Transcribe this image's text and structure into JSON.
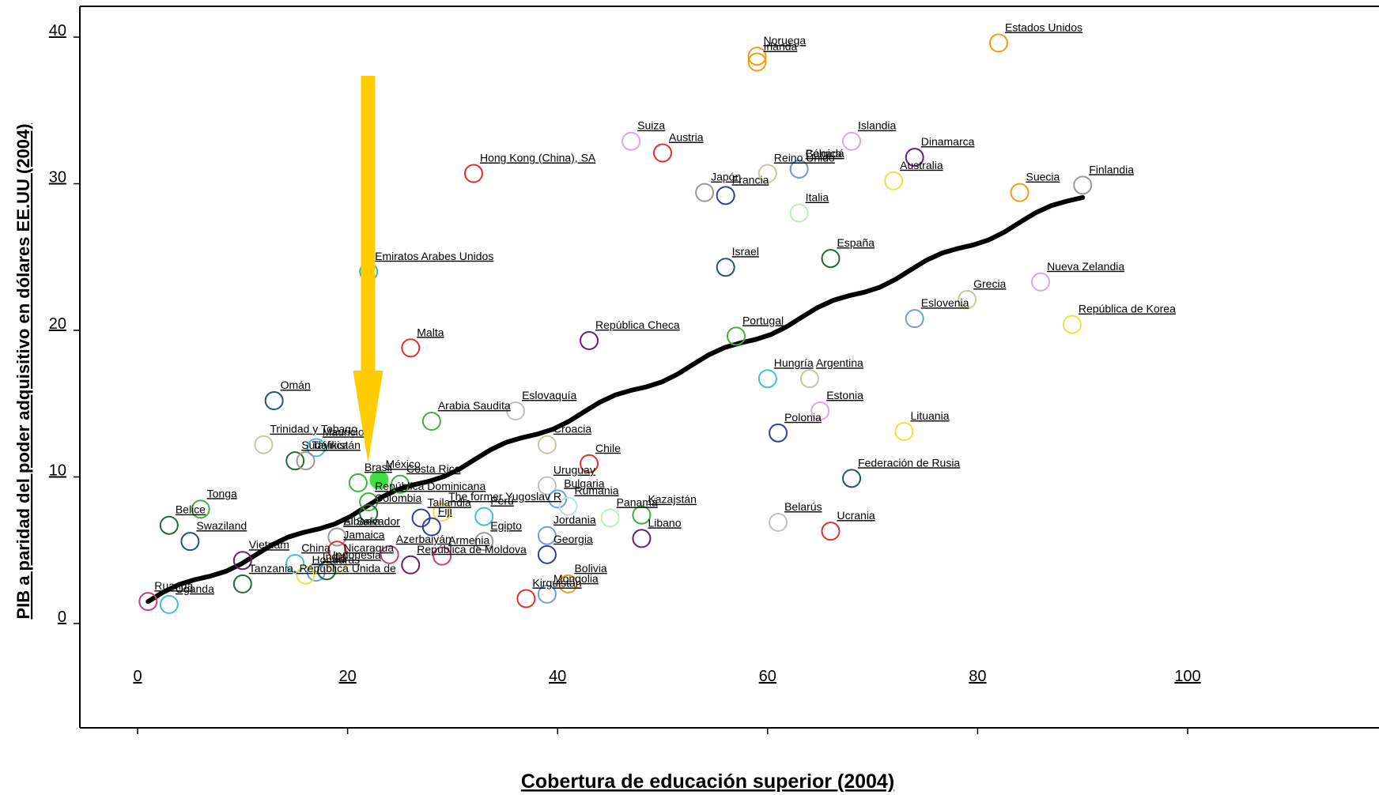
{
  "chart_data": {
    "type": "scatter",
    "xlabel": "Cobertura de educación superior (2004)",
    "ylabel": "PIB a paridad del poder adquisitivo en dólares EE.UU (2004)",
    "xlim": [
      -14,
      106
    ],
    "ylim": [
      -2,
      42
    ],
    "xticks": [
      "0",
      "20",
      "40",
      "60",
      "80",
      "100"
    ],
    "yticks": [
      "0",
      "10",
      "20",
      "30",
      "40"
    ],
    "grid": false,
    "highlight": "México",
    "arrow_color": "#FFCC00",
    "trendline": [
      [
        1,
        1.5
      ],
      [
        90,
        29.2
      ]
    ],
    "points": [
      {
        "name": "Estados Unidos",
        "x": 82,
        "y": 39.6,
        "color": "#F39C12"
      },
      {
        "name": "Noruega",
        "x": 59,
        "y": 38.7,
        "color": "#F39C12"
      },
      {
        "name": "Irlanda",
        "x": 59,
        "y": 38.3,
        "color": "#F39C12"
      },
      {
        "name": "Suiza",
        "x": 47,
        "y": 32.9,
        "color": "#D8A8E8"
      },
      {
        "name": "Austria",
        "x": 50,
        "y": 32.1,
        "color": "#E03030"
      },
      {
        "name": "Islandia",
        "x": 68,
        "y": 32.9,
        "color": "#D8A8E8"
      },
      {
        "name": "Dinamarca",
        "x": 74,
        "y": 31.8,
        "color": "#6B1E6B"
      },
      {
        "name": "Hong Kong (China), SA",
        "x": 32,
        "y": 30.7,
        "color": "#E03030"
      },
      {
        "name": "Reino Unido",
        "x": 60,
        "y": 30.7,
        "color": "#C8C89A"
      },
      {
        "name": "Canadá",
        "x": 63,
        "y": 31.0,
        "color": "#6FA0D0"
      },
      {
        "name": "Bélgica",
        "x": 63,
        "y": 31.0,
        "color": "#6FA0D0"
      },
      {
        "name": "Australia",
        "x": 72,
        "y": 30.2,
        "color": "#F0E040"
      },
      {
        "name": "Finlandia",
        "x": 90,
        "y": 29.9,
        "color": "#999999"
      },
      {
        "name": "Suecia",
        "x": 84,
        "y": 29.4,
        "color": "#F39C12"
      },
      {
        "name": "Japón",
        "x": 54,
        "y": 29.4,
        "color": "#999999"
      },
      {
        "name": "Francia",
        "x": 56,
        "y": 29.2,
        "color": "#2E3FA0"
      },
      {
        "name": "Italia",
        "x": 63,
        "y": 28.0,
        "color": "#B8F0B8"
      },
      {
        "name": "Emiratos Arabes Unidos",
        "x": 22,
        "y": 24.0,
        "color": "#40B0B0"
      },
      {
        "name": "Israel",
        "x": 56,
        "y": 24.3,
        "color": "#1E5A6B"
      },
      {
        "name": "España",
        "x": 66,
        "y": 24.9,
        "color": "#1E6B3A"
      },
      {
        "name": "Nueva Zelandia",
        "x": 86,
        "y": 23.3,
        "color": "#D8A8E8"
      },
      {
        "name": "Grecia",
        "x": 79,
        "y": 22.1,
        "color": "#C8C89A"
      },
      {
        "name": "Eslovenia",
        "x": 74,
        "y": 20.8,
        "color": "#6FA0D0"
      },
      {
        "name": "República de Korea",
        "x": 89,
        "y": 20.4,
        "color": "#F0E040"
      },
      {
        "name": "Portugal",
        "x": 57,
        "y": 19.6,
        "color": "#40B040"
      },
      {
        "name": "República Checa",
        "x": 43,
        "y": 19.3,
        "color": "#6B1E6B"
      },
      {
        "name": "Malta",
        "x": 26,
        "y": 18.8,
        "color": "#E03030"
      },
      {
        "name": "Hungría",
        "x": 60,
        "y": 16.7,
        "color": "#40C0D0"
      },
      {
        "name": "Argentina",
        "x": 64,
        "y": 16.7,
        "color": "#C8C89A"
      },
      {
        "name": "Omán",
        "x": 13,
        "y": 15.2,
        "color": "#1E5A6B"
      },
      {
        "name": "Estonia",
        "x": 65,
        "y": 14.5,
        "color": "#D8A8E8"
      },
      {
        "name": "Eslovaquía",
        "x": 36,
        "y": 14.5,
        "color": "#C0C0C0"
      },
      {
        "name": "Arabia Saudita",
        "x": 28,
        "y": 13.8,
        "color": "#40B040"
      },
      {
        "name": "Polonia",
        "x": 61,
        "y": 13.0,
        "color": "#2E3FA0"
      },
      {
        "name": "Lituania",
        "x": 73,
        "y": 13.1,
        "color": "#F0E040"
      },
      {
        "name": "Trinidad y Tobago",
        "x": 12,
        "y": 12.2,
        "color": "#C8C89A"
      },
      {
        "name": "Croacia",
        "x": 39,
        "y": 12.2,
        "color": "#C8C89A"
      },
      {
        "name": "Mauricio",
        "x": 17,
        "y": 12.0,
        "color": "#40C0D0"
      },
      {
        "name": "Sudáfrica",
        "x": 15,
        "y": 11.1,
        "color": "#1E6B3A"
      },
      {
        "name": "Chile",
        "x": 43,
        "y": 10.9,
        "color": "#E03030"
      },
      {
        "name": "Tayikistán",
        "x": 16,
        "y": 11.1,
        "color": "#999999"
      },
      {
        "name": "Federación de Rusia",
        "x": 68,
        "y": 9.9,
        "color": "#1E5A6B"
      },
      {
        "name": "México",
        "x": 23,
        "y": 9.8,
        "color": "#40E040",
        "filled": true
      },
      {
        "name": "Brasil",
        "x": 21,
        "y": 9.6,
        "color": "#40B040"
      },
      {
        "name": "Costa Rica",
        "x": 25,
        "y": 9.5,
        "color": "#40B040"
      },
      {
        "name": "Uruguay",
        "x": 39,
        "y": 9.4,
        "color": "#C0C0C0"
      },
      {
        "name": "Bulgaria",
        "x": 40,
        "y": 8.5,
        "color": "#6FA0D0"
      },
      {
        "name": "Rumania",
        "x": 41,
        "y": 8.0,
        "color": "#B8E0E0"
      },
      {
        "name": "República Dominicana",
        "x": 22,
        "y": 8.3,
        "color": "#40B040"
      },
      {
        "name": "Tonga",
        "x": 6,
        "y": 7.8,
        "color": "#40B040"
      },
      {
        "name": "Belice",
        "x": 3,
        "y": 6.7,
        "color": "#1E6B3A"
      },
      {
        "name": "Colombia",
        "x": 22,
        "y": 7.5,
        "color": "#1E6B3A"
      },
      {
        "name": "The former Yugoslav R",
        "x": 29,
        "y": 7.6,
        "color": "#F0E040"
      },
      {
        "name": "Panamá",
        "x": 45,
        "y": 7.2,
        "color": "#B8F0B8"
      },
      {
        "name": "Kazajstán",
        "x": 48,
        "y": 7.4,
        "color": "#40B040"
      },
      {
        "name": "Perú",
        "x": 33,
        "y": 7.3,
        "color": "#40C0D0"
      },
      {
        "name": "Tailandia",
        "x": 27,
        "y": 7.2,
        "color": "#2E3FA0"
      },
      {
        "name": "Fiji",
        "x": 28,
        "y": 6.6,
        "color": "#2E3FA0"
      },
      {
        "name": "Swaziland",
        "x": 5,
        "y": 5.6,
        "color": "#1E5A6B"
      },
      {
        "name": "Albania",
        "x": 19,
        "y": 5.9,
        "color": "#C0C0C0"
      },
      {
        "name": "El Salvador",
        "x": 19,
        "y": 5.9,
        "color": "#999999"
      },
      {
        "name": "Libano",
        "x": 48,
        "y": 5.8,
        "color": "#6B1E6B"
      },
      {
        "name": "Jordania",
        "x": 39,
        "y": 6.0,
        "color": "#6FA0D0"
      },
      {
        "name": "Egipto",
        "x": 33,
        "y": 5.6,
        "color": "#999999"
      },
      {
        "name": "Belarús",
        "x": 61,
        "y": 6.9,
        "color": "#C0C0C0"
      },
      {
        "name": "Ucrania",
        "x": 66,
        "y": 6.3,
        "color": "#E03030"
      },
      {
        "name": "Jamaica",
        "x": 19,
        "y": 5.0,
        "color": "#E03030"
      },
      {
        "name": "Azerbaiyán",
        "x": 24,
        "y": 4.7,
        "color": "#C04080"
      },
      {
        "name": "China",
        "x": 15,
        "y": 4.1,
        "color": "#40C0D0"
      },
      {
        "name": "Armenia",
        "x": 29,
        "y": 4.6,
        "color": "#C04080"
      },
      {
        "name": "Vietnam",
        "x": 10,
        "y": 4.3,
        "color": "#6B1E6B"
      },
      {
        "name": "Nicaragua",
        "x": 19,
        "y": 4.1,
        "color": "#F0E040"
      },
      {
        "name": "India",
        "x": 17,
        "y": 3.5,
        "color": "#6FA0D0"
      },
      {
        "name": "Indonesia",
        "x": 18,
        "y": 3.6,
        "color": "#1E6B3A"
      },
      {
        "name": "República de Moldova",
        "x": 26,
        "y": 4.0,
        "color": "#6B1E6B"
      },
      {
        "name": "Georgia",
        "x": 39,
        "y": 4.7,
        "color": "#2E3FA0"
      },
      {
        "name": "Bolivia",
        "x": 41,
        "y": 2.7,
        "color": "#F39C12"
      },
      {
        "name": "Honduras",
        "x": 16,
        "y": 3.3,
        "color": "#F0E040"
      },
      {
        "name": "Tanzania, República Unida de",
        "x": 10,
        "y": 2.7,
        "color": "#1E6B3A"
      },
      {
        "name": "Kirguistán",
        "x": 37,
        "y": 1.7,
        "color": "#E03030"
      },
      {
        "name": "Mongolia",
        "x": 39,
        "y": 2.0,
        "color": "#6FA0D0"
      },
      {
        "name": "Ruanda",
        "x": 1,
        "y": 1.5,
        "color": "#C04080"
      },
      {
        "name": "Uganda",
        "x": 3,
        "y": 1.3,
        "color": "#40C0D0"
      }
    ]
  }
}
